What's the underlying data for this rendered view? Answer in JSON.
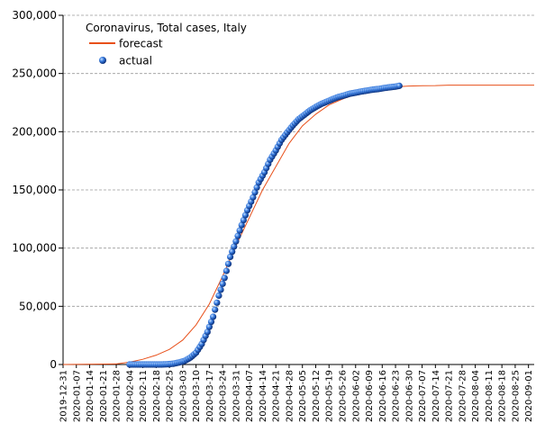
{
  "chart_data": {
    "type": "line",
    "legend_title": "Coronavirus, Total cases, Italy",
    "legend_position": "top-left",
    "grid": true,
    "ylim": [
      0,
      300000
    ],
    "yticks": [
      "0",
      "50,000",
      "100,000",
      "150,000",
      "200,000",
      "250,000",
      "300,000"
    ],
    "yticks_values": [
      0,
      50000,
      100000,
      150000,
      200000,
      250000,
      300000
    ],
    "xlim": [
      "2019-12-31",
      "2020-09-04"
    ],
    "xticks": [
      "2019-12-31",
      "2020-01-07",
      "2020-01-14",
      "2020-01-21",
      "2020-01-28",
      "2020-02-04",
      "2020-02-11",
      "2020-02-18",
      "2020-02-25",
      "2020-03-03",
      "2020-03-10",
      "2020-03-17",
      "2020-03-24",
      "2020-03-31",
      "2020-04-07",
      "2020-04-14",
      "2020-04-21",
      "2020-04-28",
      "2020-05-05",
      "2020-05-12",
      "2020-05-19",
      "2020-05-26",
      "2020-06-02",
      "2020-06-09",
      "2020-06-16",
      "2020-06-23",
      "2020-06-30",
      "2020-07-07",
      "2020-07-14",
      "2020-07-21",
      "2020-07-28",
      "2020-08-04",
      "2020-08-11",
      "2020-08-18",
      "2020-08-25",
      "2020-09-01"
    ],
    "series": [
      {
        "name": "forecast",
        "color": "#e8501a",
        "marker": "line",
        "points": [
          [
            "2019-12-31",
            0
          ],
          [
            "2020-01-28",
            500
          ],
          [
            "2020-02-04",
            2000
          ],
          [
            "2020-02-11",
            4500
          ],
          [
            "2020-02-18",
            8000
          ],
          [
            "2020-02-25",
            13000
          ],
          [
            "2020-03-03",
            21000
          ],
          [
            "2020-03-10",
            34000
          ],
          [
            "2020-03-17",
            52000
          ],
          [
            "2020-03-24",
            76000
          ],
          [
            "2020-03-31",
            102000
          ],
          [
            "2020-04-07",
            126000
          ],
          [
            "2020-04-14",
            150000
          ],
          [
            "2020-04-21",
            170000
          ],
          [
            "2020-04-28",
            190000
          ],
          [
            "2020-05-05",
            205000
          ],
          [
            "2020-05-12",
            215000
          ],
          [
            "2020-05-19",
            223000
          ],
          [
            "2020-05-26",
            228000
          ],
          [
            "2020-06-02",
            232000
          ],
          [
            "2020-06-09",
            235000
          ],
          [
            "2020-06-16",
            237000
          ],
          [
            "2020-06-23",
            238500
          ],
          [
            "2020-06-30",
            239200
          ],
          [
            "2020-07-07",
            239500
          ],
          [
            "2020-07-14",
            239600
          ],
          [
            "2020-07-21",
            240000
          ],
          [
            "2020-07-28",
            240000
          ],
          [
            "2020-08-04",
            240000
          ],
          [
            "2020-08-11",
            240000
          ],
          [
            "2020-08-18",
            240000
          ],
          [
            "2020-08-25",
            240000
          ],
          [
            "2020-09-01",
            240000
          ],
          [
            "2020-09-04",
            240000
          ]
        ]
      },
      {
        "name": "actual",
        "color": "#1f5fd0",
        "marker": "dot",
        "points": [
          [
            "2020-02-04",
            0
          ],
          [
            "2020-02-11",
            3
          ],
          [
            "2020-02-18",
            3
          ],
          [
            "2020-02-21",
            20
          ],
          [
            "2020-02-24",
            229
          ],
          [
            "2020-02-27",
            655
          ],
          [
            "2020-03-01",
            1694
          ],
          [
            "2020-03-04",
            3089
          ],
          [
            "2020-03-07",
            5883
          ],
          [
            "2020-03-10",
            10149
          ],
          [
            "2020-03-13",
            17660
          ],
          [
            "2020-03-16",
            27980
          ],
          [
            "2020-03-19",
            41035
          ],
          [
            "2020-03-22",
            59138
          ],
          [
            "2020-03-25",
            74386
          ],
          [
            "2020-03-28",
            92472
          ],
          [
            "2020-03-31",
            105792
          ],
          [
            "2020-04-03",
            119827
          ],
          [
            "2020-04-06",
            132547
          ],
          [
            "2020-04-09",
            143626
          ],
          [
            "2020-04-12",
            156363
          ],
          [
            "2020-04-15",
            165155
          ],
          [
            "2020-04-18",
            175925
          ],
          [
            "2020-04-21",
            183957
          ],
          [
            "2020-04-24",
            192994
          ],
          [
            "2020-04-27",
            199414
          ],
          [
            "2020-04-30",
            205463
          ],
          [
            "2020-05-03",
            210717
          ],
          [
            "2020-05-06",
            214457
          ],
          [
            "2020-05-09",
            218268
          ],
          [
            "2020-05-12",
            221216
          ],
          [
            "2020-05-15",
            223885
          ],
          [
            "2020-05-18",
            225886
          ],
          [
            "2020-05-21",
            228006
          ],
          [
            "2020-05-24",
            229858
          ],
          [
            "2020-05-27",
            231139
          ],
          [
            "2020-05-30",
            232664
          ],
          [
            "2020-06-02",
            233515
          ],
          [
            "2020-06-05",
            234531
          ],
          [
            "2020-06-08",
            235278
          ],
          [
            "2020-06-11",
            236142
          ],
          [
            "2020-06-14",
            236651
          ],
          [
            "2020-06-17",
            237500
          ],
          [
            "2020-06-20",
            238159
          ],
          [
            "2020-06-23",
            238720
          ],
          [
            "2020-06-25",
            239410
          ]
        ]
      }
    ]
  }
}
